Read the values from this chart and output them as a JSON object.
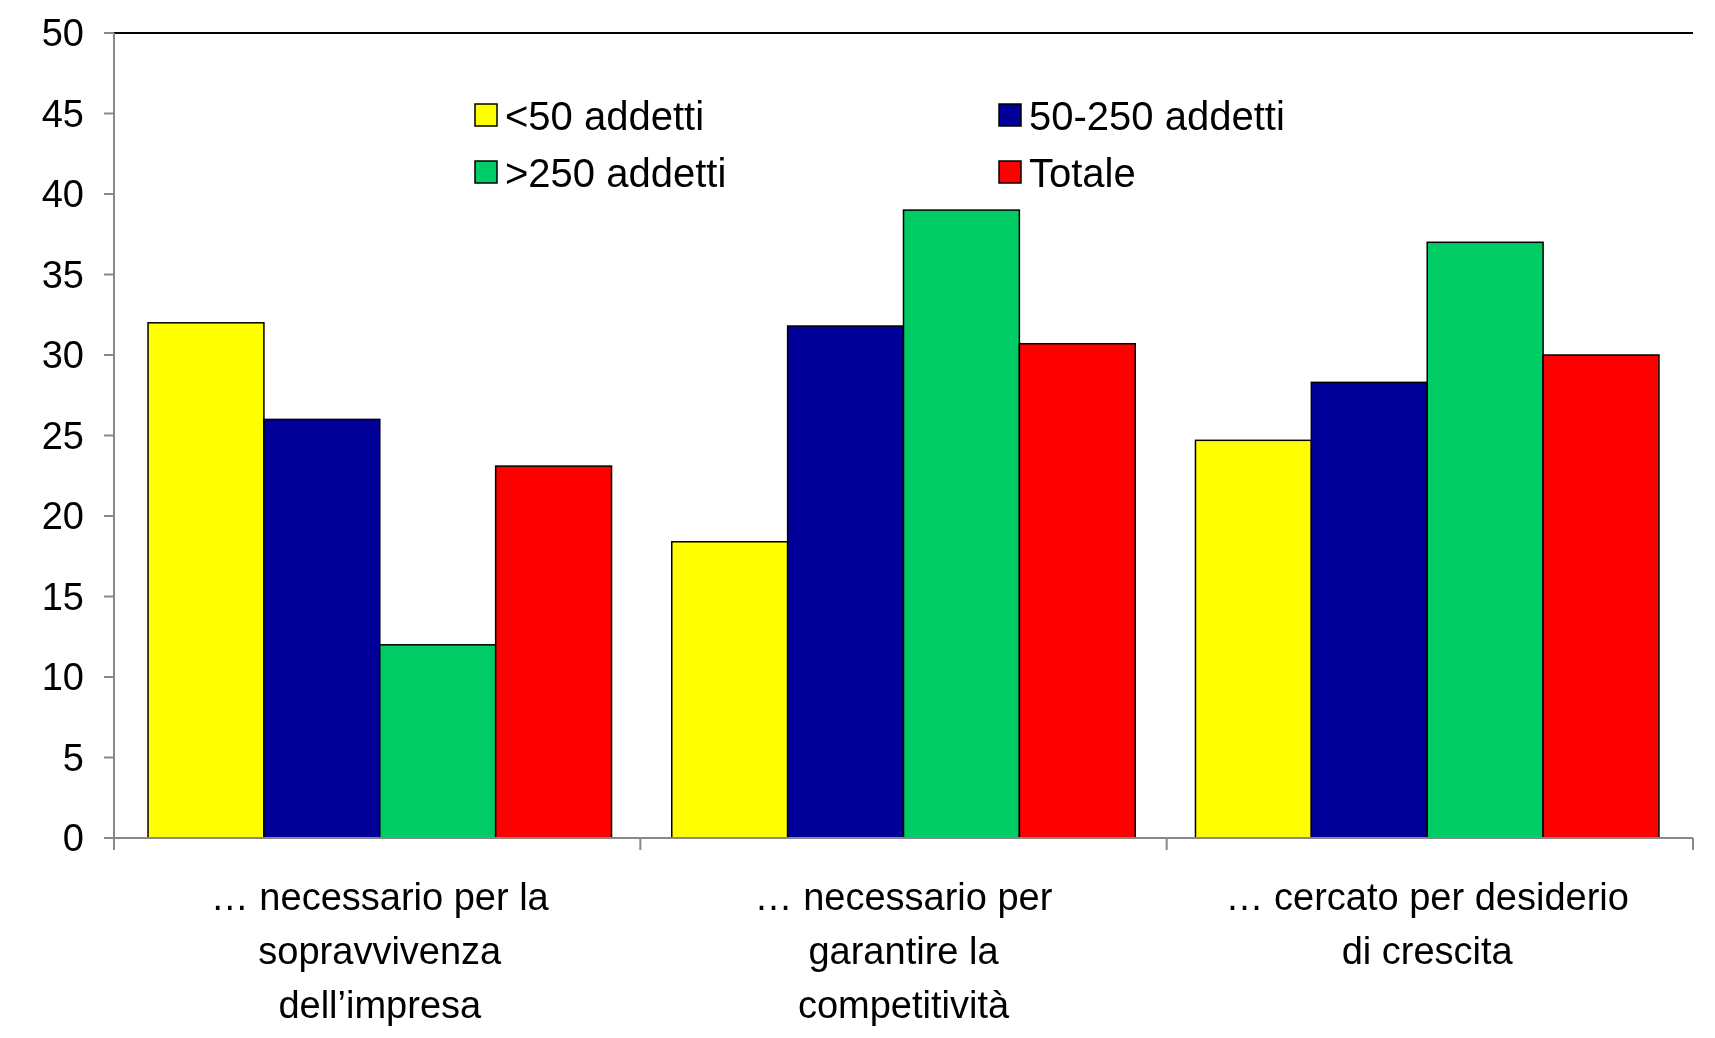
{
  "chart_data": {
    "type": "bar",
    "categories": [
      "… necessario per la sopravvivenza dell’impresa",
      "… necessario per garantire la competitività",
      "… cercato per desiderio di crescita"
    ],
    "series": [
      {
        "name": "<50 addetti",
        "color": "#ffff00",
        "values": [
          32.0,
          18.4,
          24.7
        ]
      },
      {
        "name": "50-250 addetti",
        "color": "#000099",
        "values": [
          26.0,
          31.8,
          28.3
        ]
      },
      {
        "name": ">250 addetti",
        "color": "#00cc66",
        "values": [
          12.0,
          39.0,
          37.0
        ]
      },
      {
        "name": "Totale",
        "color": "#ff0000",
        "values": [
          23.1,
          30.7,
          30.0
        ]
      }
    ],
    "ylim": [
      0,
      50
    ],
    "yticks": [
      0,
      5,
      10,
      15,
      20,
      25,
      30,
      35,
      40,
      45,
      50
    ],
    "grid": false,
    "legend": "top"
  }
}
